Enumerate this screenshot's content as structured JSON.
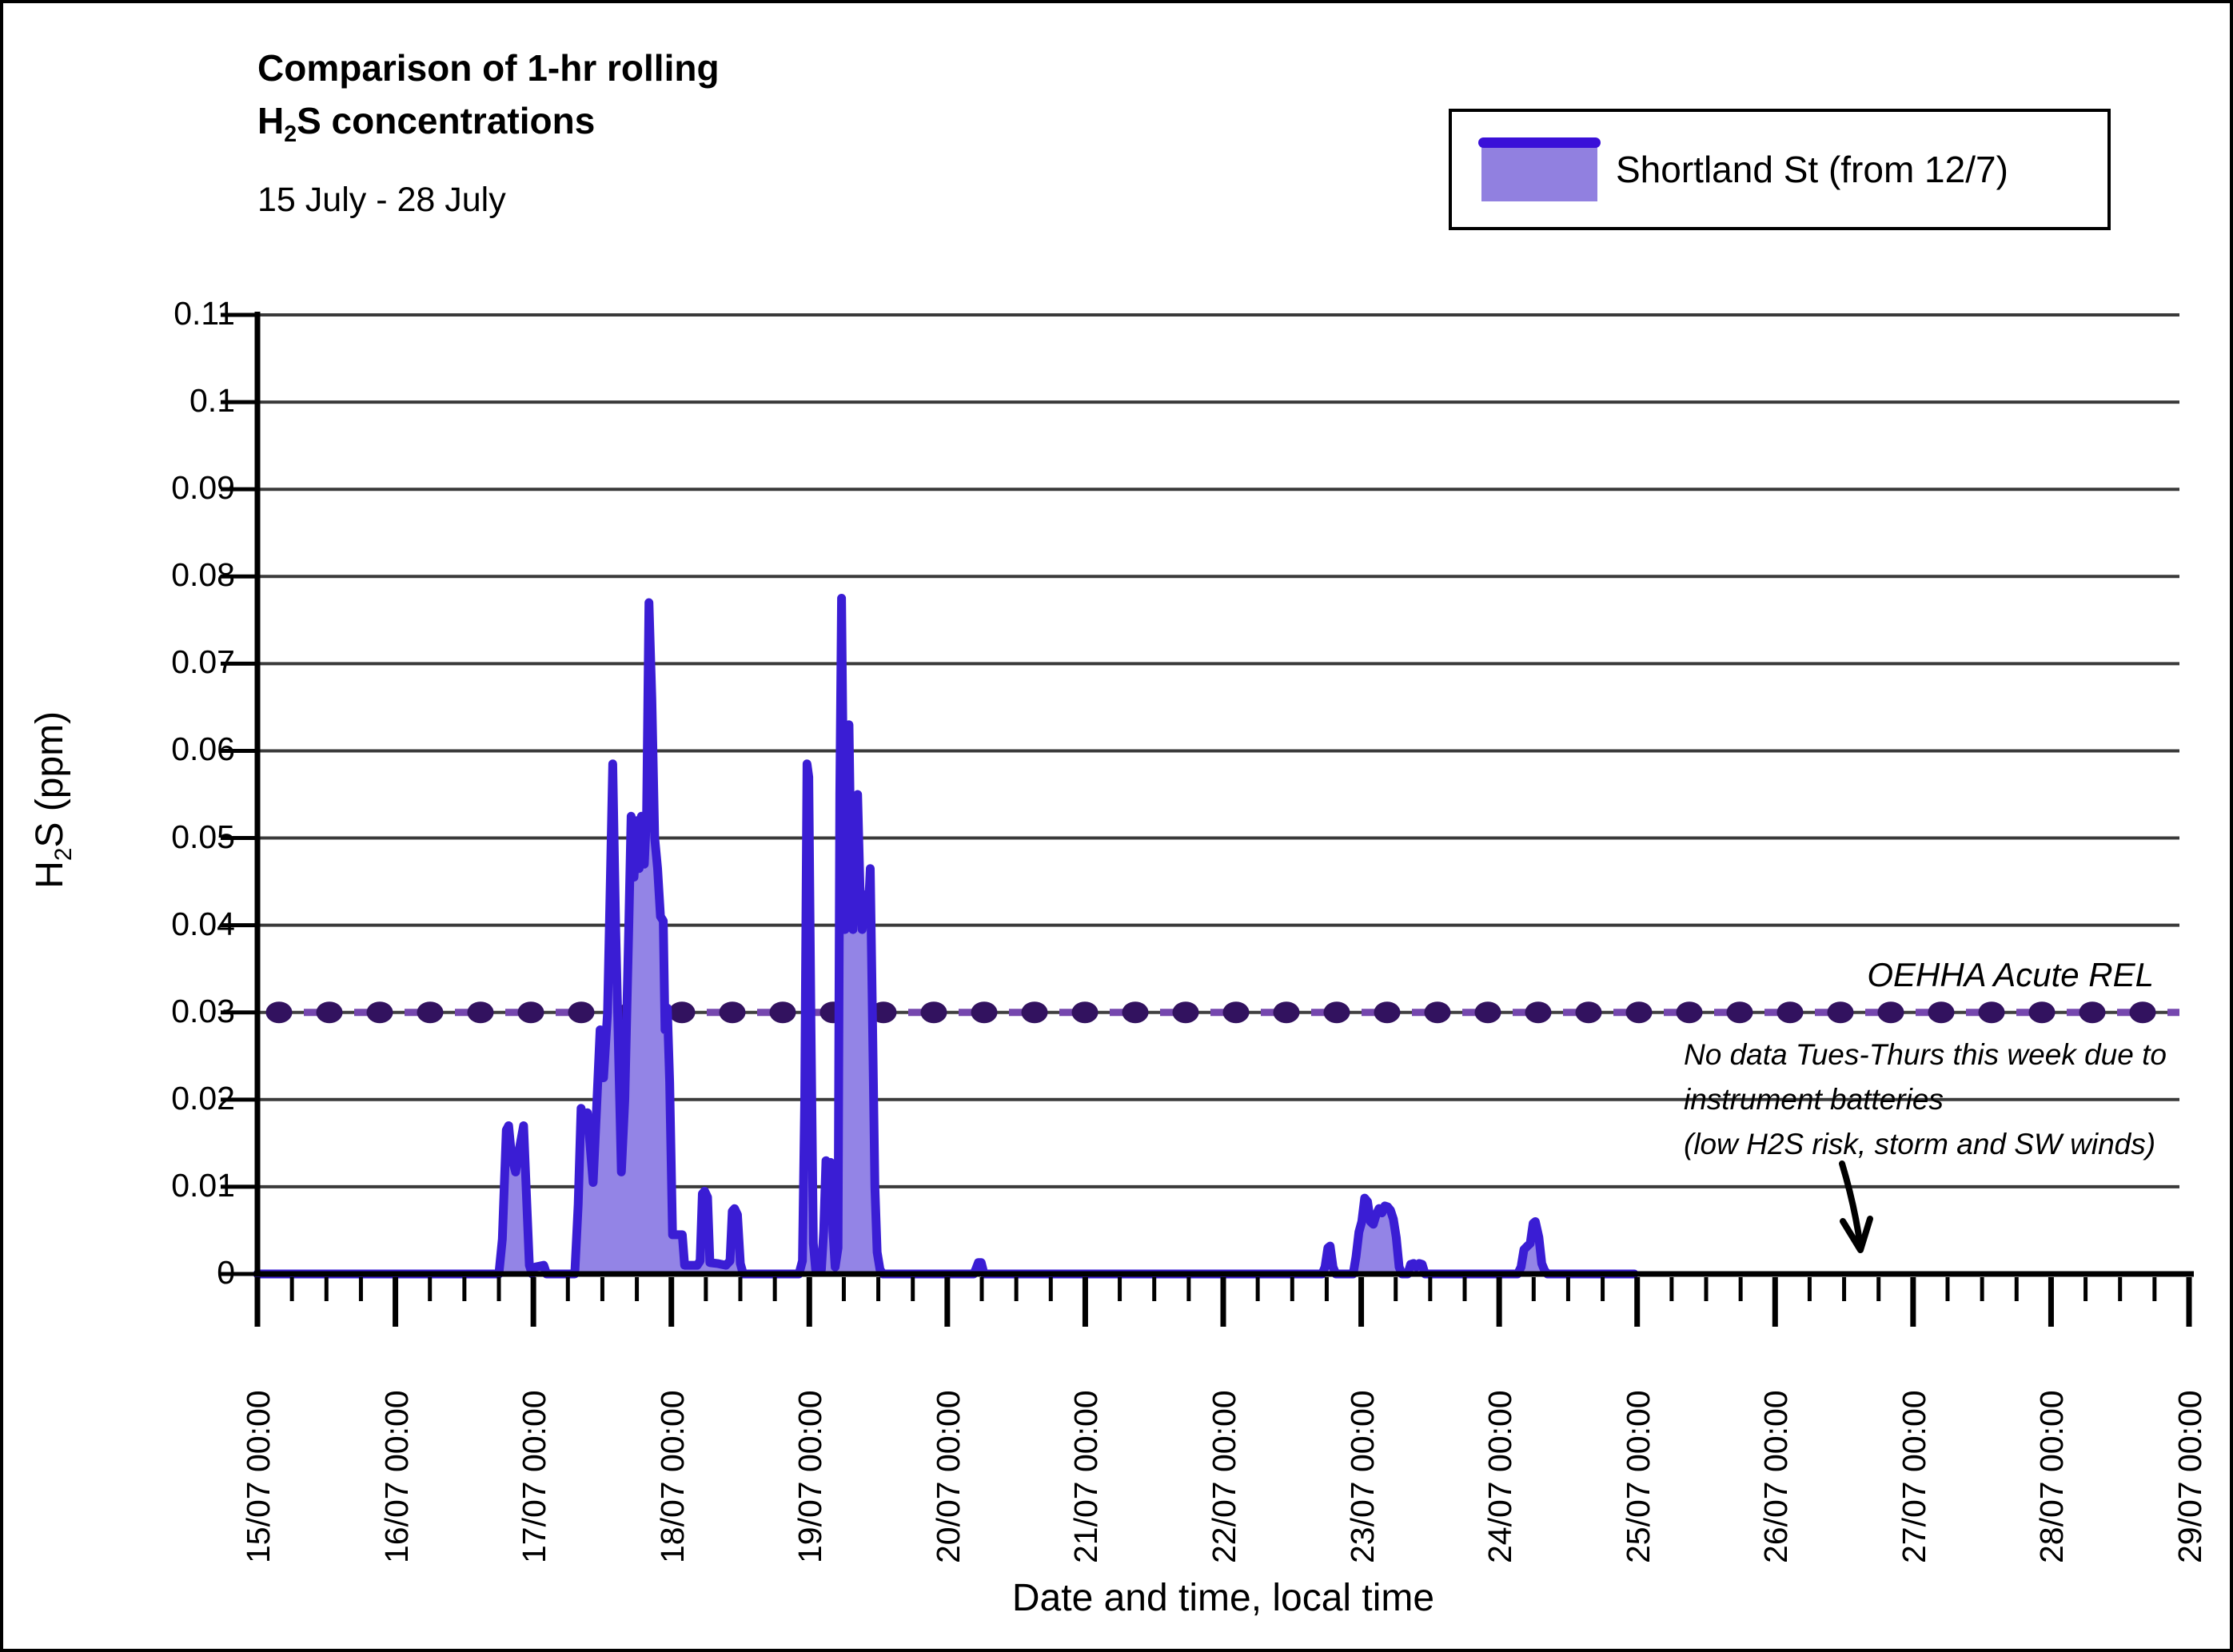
{
  "title": {
    "line1": "Comparison of 1-hr rolling",
    "line2_pre": "H",
    "line2_sub": "2",
    "line2_post": "S concentrations"
  },
  "subtitle": "15 July - 28 July",
  "legend": {
    "label": "Shortland St (from 12/7)"
  },
  "colors": {
    "series_line": "#3a1dd4",
    "series_fill": "#9384e6",
    "legend_fill": "#9180e0",
    "legend_bar": "#3a10d8",
    "rel_dot": "#32125f",
    "rel_dash": "#7547ae",
    "rel_baseline": "#3f3f3f",
    "grid": "#3a3a3a",
    "axis": "#000000"
  },
  "annotation": {
    "line1": "No data Tues-Thurs this week due to",
    "line2": "instrument batteries",
    "line3": "(low H2S risk, storm and SW winds)"
  },
  "rel_label": "OEHHA Acute REL",
  "y_axis_title": {
    "pre": "H",
    "sub": "2",
    "post": "S (ppm)"
  },
  "x_axis_title": "Date and time, local time",
  "chart_data": {
    "type": "area",
    "title": "Comparison of 1-hr rolling H2S concentrations, 15 July - 28 July",
    "xlabel": "Date and time, local time",
    "ylabel": "H2S (ppm)",
    "x_axis": {
      "start": "15/07 00:00",
      "end": "29/07 00:00",
      "units": "hours since 15/07 00:00",
      "range_hours": [
        0,
        336
      ],
      "major_tick": "1 day",
      "minor_tick": "6 hours",
      "tick_labels": [
        "15/07 00:00",
        "16/07 00:00",
        "17/07 00:00",
        "18/07 00:00",
        "19/07 00:00",
        "20/07 00:00",
        "21/07 00:00",
        "22/07 00:00",
        "23/07 00:00",
        "24/07 00:00",
        "25/07 00:00",
        "26/07 00:00",
        "27/07 00:00",
        "28/07 00:00",
        "29/07 00:00"
      ]
    },
    "y_axis": {
      "min": 0,
      "max": 0.11,
      "tick_step": 0.01,
      "tick_labels": [
        "0.11",
        "0.1",
        "0.09",
        "0.08",
        "0.07",
        "0.06",
        "0.05",
        "0.04",
        "0.03",
        "0.02",
        "0.01",
        "0"
      ]
    },
    "grid": "horizontal",
    "legend_position": "top-right",
    "reference_line": {
      "label": "OEHHA Acute REL",
      "value_ppm": 0.03,
      "style": "dash-dot"
    },
    "data_end_hours": 239.5,
    "series": [
      {
        "name": "Shortland St (from 12/7)",
        "points_t_hours_v_ppm": [
          [
            0,
            0
          ],
          [
            42,
            0
          ],
          [
            42.6,
            0.004
          ],
          [
            43.3,
            0.0165
          ],
          [
            43.7,
            0.017
          ],
          [
            44.2,
            0.0135
          ],
          [
            44.9,
            0.0117
          ],
          [
            45.6,
            0.0145
          ],
          [
            46.3,
            0.017
          ],
          [
            46.8,
            0.009
          ],
          [
            47.3,
            0.001
          ],
          [
            47.8,
            0
          ],
          [
            48.4,
            0.0008
          ],
          [
            49.8,
            0.001
          ],
          [
            50.3,
            0
          ],
          [
            55.2,
            0
          ],
          [
            55.8,
            0.008
          ],
          [
            56.3,
            0.019
          ],
          [
            56.9,
            0.017
          ],
          [
            57.4,
            0.0185
          ],
          [
            58.4,
            0.0105
          ],
          [
            59,
            0.019
          ],
          [
            59.6,
            0.028
          ],
          [
            60.2,
            0.0225
          ],
          [
            60.9,
            0.03
          ],
          [
            61.4,
            0.0455
          ],
          [
            61.8,
            0.0585
          ],
          [
            62.3,
            0.04
          ],
          [
            63.3,
            0.0117
          ],
          [
            63.9,
            0.02
          ],
          [
            64.6,
            0.04
          ],
          [
            65,
            0.0525
          ],
          [
            65.5,
            0.0455
          ],
          [
            66,
            0.052
          ],
          [
            66.4,
            0.0465
          ],
          [
            66.8,
            0.0525
          ],
          [
            67.3,
            0.047
          ],
          [
            67.7,
            0.053
          ],
          [
            68.1,
            0.077
          ],
          [
            68.6,
            0.066
          ],
          [
            69.1,
            0.05
          ],
          [
            69.6,
            0.0465
          ],
          [
            70.1,
            0.041
          ],
          [
            70.6,
            0.0405
          ],
          [
            70.9,
            0.028
          ],
          [
            71.3,
            0.0305
          ],
          [
            71.7,
            0.022
          ],
          [
            72.2,
            0.0045
          ],
          [
            73.9,
            0.0045
          ],
          [
            74.3,
            0.001
          ],
          [
            76.5,
            0.001
          ],
          [
            77,
            0.0015
          ],
          [
            77.4,
            0.0092
          ],
          [
            77.8,
            0.0095
          ],
          [
            78.3,
            0.0088
          ],
          [
            78.7,
            0.0013
          ],
          [
            80,
            0.0012
          ],
          [
            81.5,
            0.001
          ],
          [
            82.2,
            0.0015
          ],
          [
            82.6,
            0.0072
          ],
          [
            83,
            0.0075
          ],
          [
            83.5,
            0.0068
          ],
          [
            84,
            0.0012
          ],
          [
            84.5,
            0
          ],
          [
            94.2,
            0
          ],
          [
            94.8,
            0.0015
          ],
          [
            95.2,
            0.02
          ],
          [
            95.6,
            0.0585
          ],
          [
            95.9,
            0.057
          ],
          [
            96.3,
            0.028
          ],
          [
            96.7,
            0.0035
          ],
          [
            97.1,
            0.0005
          ],
          [
            98.1,
            0.0005
          ],
          [
            98.5,
            0.005
          ],
          [
            98.9,
            0.013
          ],
          [
            99.3,
            0.0122
          ],
          [
            99.7,
            0.0128
          ],
          [
            100.1,
            0.005
          ],
          [
            100.5,
            0.0008
          ],
          [
            101,
            0.003
          ],
          [
            101.3,
            0.055
          ],
          [
            101.6,
            0.0775
          ],
          [
            101.9,
            0.058
          ],
          [
            102.2,
            0.0395
          ],
          [
            102.6,
            0.0555
          ],
          [
            102.9,
            0.063
          ],
          [
            103.3,
            0.0445
          ],
          [
            103.6,
            0.0395
          ],
          [
            104,
            0.048
          ],
          [
            104.4,
            0.055
          ],
          [
            104.8,
            0.0445
          ],
          [
            105.2,
            0.0395
          ],
          [
            105.7,
            0.0435
          ],
          [
            106.2,
            0.0405
          ],
          [
            106.6,
            0.0465
          ],
          [
            107,
            0.0285
          ],
          [
            107.4,
            0.01
          ],
          [
            107.8,
            0.0025
          ],
          [
            108.3,
            0.0005
          ],
          [
            108.8,
            0
          ],
          [
            124.6,
            0
          ],
          [
            125,
            0.0006
          ],
          [
            125.4,
            0.0013
          ],
          [
            125.9,
            0.0013
          ],
          [
            126.4,
            0
          ],
          [
            185.2,
            0
          ],
          [
            185.7,
            0.0008
          ],
          [
            186.2,
            0.003
          ],
          [
            186.6,
            0.0032
          ],
          [
            187.1,
            0.0008
          ],
          [
            187.6,
            0
          ],
          [
            190.6,
            0
          ],
          [
            191.1,
            0.002
          ],
          [
            191.6,
            0.0048
          ],
          [
            192.1,
            0.006
          ],
          [
            192.6,
            0.0087
          ],
          [
            193.1,
            0.0083
          ],
          [
            193.6,
            0.006
          ],
          [
            194.1,
            0.0057
          ],
          [
            194.6,
            0.0068
          ],
          [
            195.1,
            0.0075
          ],
          [
            195.6,
            0.007
          ],
          [
            196.1,
            0.0078
          ],
          [
            196.6,
            0.0077
          ],
          [
            197.1,
            0.0073
          ],
          [
            197.6,
            0.0063
          ],
          [
            198.1,
            0.0042
          ],
          [
            198.6,
            0.0008
          ],
          [
            199.1,
            0
          ],
          [
            200.1,
            0
          ],
          [
            200.6,
            0.0011
          ],
          [
            201.1,
            0.0012
          ],
          [
            201.6,
            0.0008
          ],
          [
            202.1,
            0.0012
          ],
          [
            202.6,
            0.0011
          ],
          [
            203.1,
            0
          ],
          [
            219.2,
            0
          ],
          [
            219.8,
            0.0008
          ],
          [
            220.3,
            0.0028
          ],
          [
            220.9,
            0.0032
          ],
          [
            221.4,
            0.0035
          ],
          [
            221.9,
            0.0058
          ],
          [
            222.3,
            0.006
          ],
          [
            222.9,
            0.0042
          ],
          [
            223.4,
            0.0012
          ],
          [
            223.9,
            0.0004
          ],
          [
            224.4,
            0
          ],
          [
            239.5,
            0
          ]
        ]
      }
    ]
  }
}
